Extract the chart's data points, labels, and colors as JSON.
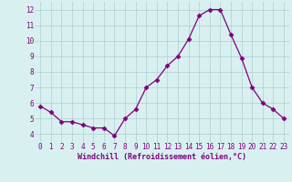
{
  "x": [
    0,
    1,
    2,
    3,
    4,
    5,
    6,
    7,
    8,
    9,
    10,
    11,
    12,
    13,
    14,
    15,
    16,
    17,
    18,
    19,
    20,
    21,
    22,
    23
  ],
  "y": [
    5.8,
    5.4,
    4.8,
    4.8,
    4.6,
    4.4,
    4.4,
    3.9,
    5.0,
    5.6,
    7.0,
    7.5,
    8.4,
    9.0,
    10.1,
    11.6,
    12.0,
    12.0,
    10.4,
    8.9,
    7.0,
    6.0,
    5.6,
    5.0
  ],
  "line_color": "#800080",
  "marker": "D",
  "marker_size": 2.5,
  "bg_color": "#d8f0f0",
  "grid_color": "#b0cece",
  "xlabel": "Windchill (Refroidissement éolien,°C)",
  "xlabel_color": "#800080",
  "xlabel_fontsize": 6.0,
  "tick_color": "#800080",
  "tick_fontsize": 5.5,
  "ylim": [
    3.5,
    12.5
  ],
  "yticks": [
    4,
    5,
    6,
    7,
    8,
    9,
    10,
    11,
    12
  ],
  "xticks": [
    0,
    1,
    2,
    3,
    4,
    5,
    6,
    7,
    8,
    9,
    10,
    11,
    12,
    13,
    14,
    15,
    16,
    17,
    18,
    19,
    20,
    21,
    22,
    23
  ],
  "xlim": [
    -0.5,
    23.5
  ]
}
